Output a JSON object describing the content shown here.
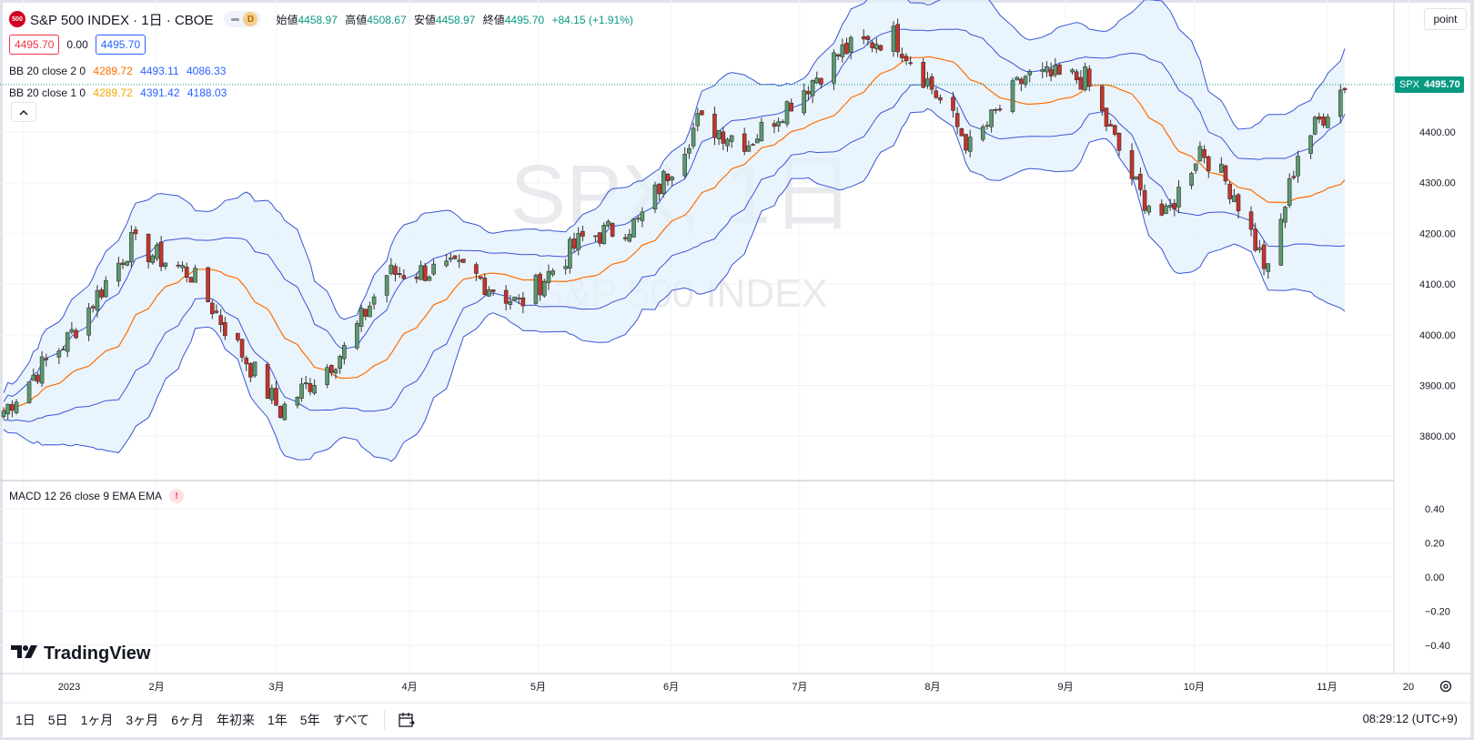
{
  "header": {
    "symbol_logo": "500",
    "title": "S&P 500 INDEX · 1日 · CBOE",
    "interval_badge": "D",
    "ohlc": [
      {
        "label": "始値",
        "value": "4458.97"
      },
      {
        "label": "高値",
        "value": "4508.67"
      },
      {
        "label": "安値",
        "value": "4458.97"
      },
      {
        "label": "終値",
        "value": "4495.70"
      }
    ],
    "change": "+84.15 (+1.91%)"
  },
  "price_row": {
    "bid": "4495.70",
    "spread": "0.00",
    "ask": "4495.70"
  },
  "indicators": [
    {
      "name": "BB 20 close 2 0",
      "basis": "4289.72",
      "upper": "4493.11",
      "lower": "4086.33"
    },
    {
      "name": "BB 20 close 1 0",
      "basis": "4289.72",
      "upper": "4391.42",
      "lower": "4188.03"
    }
  ],
  "collapse_icon": "chevron-up-icon",
  "macd_label": "MACD 12 26 close 9 EMA EMA",
  "macd_warning": "!",
  "watermark": {
    "line1": "SPX, 1日",
    "line2": "S&P 500 INDEX"
  },
  "brand": "TradingView",
  "unit_button": "point",
  "last_price_tag": {
    "symbol": "SPX",
    "price": "4495.70"
  },
  "price_axis_labels": [
    "4400.00",
    "4300.00",
    "4200.00",
    "4100.00",
    "4000.00",
    "3900.00",
    "3800.00"
  ],
  "macd_axis_labels": [
    "0.40",
    "0.20",
    "0.00",
    "−0.20",
    "−0.40"
  ],
  "time_axis_labels": [
    "2023",
    "2月",
    "3月",
    "4月",
    "5月",
    "6月",
    "7月",
    "8月",
    "9月",
    "10月",
    "11月",
    "20"
  ],
  "range_buttons": [
    "1日",
    "5日",
    "1ヶ月",
    "3ヶ月",
    "6ヶ月",
    "年初来",
    "1年",
    "5年",
    "すべて"
  ],
  "clock": "08:29:12 (UTC+9)",
  "colors": {
    "up": "#5b9a6e",
    "down": "#c8322a",
    "basis": "#ff6d00",
    "band": "#3a55d6",
    "fill": "#e3f0fb",
    "accent": "#089981"
  },
  "chart_data": {
    "type": "candlestick",
    "instrument": "S&P 500 INDEX",
    "ylim": [
      3720,
      4560
    ],
    "series_close_anchors": [
      {
        "x": "2023-01-03",
        "y": 3850
      },
      {
        "x": "2023-01-10",
        "y": 3920
      },
      {
        "x": "2023-01-18",
        "y": 3990
      },
      {
        "x": "2023-02-02",
        "y": 4180
      },
      {
        "x": "2023-02-16",
        "y": 4120
      },
      {
        "x": "2023-03-01",
        "y": 3950
      },
      {
        "x": "2023-03-09",
        "y": 3850
      },
      {
        "x": "2023-03-24",
        "y": 3970
      },
      {
        "x": "2023-04-03",
        "y": 4120
      },
      {
        "x": "2023-04-21",
        "y": 4130
      },
      {
        "x": "2023-05-04",
        "y": 4060
      },
      {
        "x": "2023-05-19",
        "y": 4190
      },
      {
        "x": "2023-06-01",
        "y": 4220
      },
      {
        "x": "2023-06-15",
        "y": 4420
      },
      {
        "x": "2023-06-27",
        "y": 4380
      },
      {
        "x": "2023-07-19",
        "y": 4560
      },
      {
        "x": "2023-07-31",
        "y": 4590
      },
      {
        "x": "2023-08-08",
        "y": 4500
      },
      {
        "x": "2023-08-18",
        "y": 4370
      },
      {
        "x": "2023-08-31",
        "y": 4510
      },
      {
        "x": "2023-09-14",
        "y": 4505
      },
      {
        "x": "2023-09-27",
        "y": 4275
      },
      {
        "x": "2023-10-03",
        "y": 4230
      },
      {
        "x": "2023-10-11",
        "y": 4370
      },
      {
        "x": "2023-10-19",
        "y": 4280
      },
      {
        "x": "2023-10-27",
        "y": 4120
      },
      {
        "x": "2023-11-03",
        "y": 4360
      },
      {
        "x": "2023-11-14",
        "y": 4495.7
      }
    ]
  }
}
